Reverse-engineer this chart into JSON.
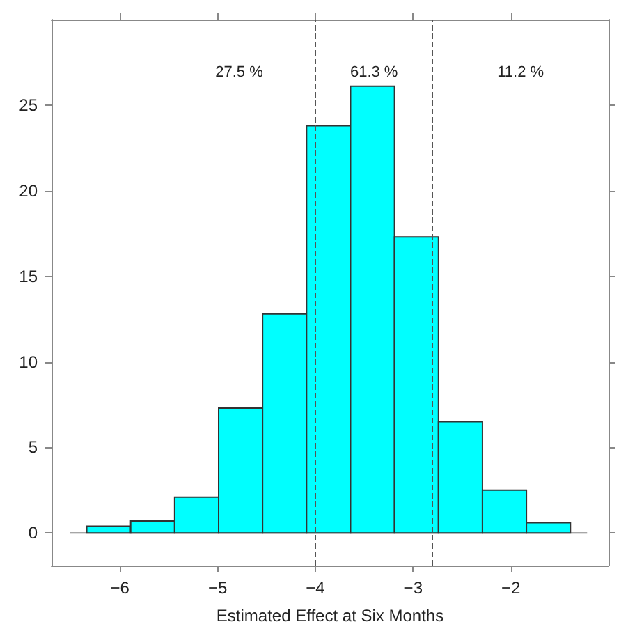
{
  "chart_data": {
    "type": "histogram",
    "xlabel": "Estimated Effect at Six Months",
    "bins": [
      -6.34,
      -5.89,
      -5.44,
      -4.99,
      -4.54,
      -4.09,
      -3.64,
      -3.19,
      -2.74,
      -2.29,
      -1.84,
      -1.39
    ],
    "values": [
      0.4,
      0.7,
      2.1,
      7.3,
      12.8,
      23.8,
      26.1,
      17.3,
      6.5,
      2.5,
      0.6
    ],
    "color": "#00ffff",
    "xlim": [
      -6.7,
      -1.0
    ],
    "ylim": [
      -1.9,
      30
    ],
    "xticks": [
      {
        "value": -6,
        "label": "−6"
      },
      {
        "value": -5,
        "label": "−5"
      },
      {
        "value": -4,
        "label": "−4"
      },
      {
        "value": -3,
        "label": "−3"
      },
      {
        "value": -2,
        "label": "−2"
      }
    ],
    "yticks": [
      0,
      5,
      10,
      15,
      20,
      25
    ],
    "ref_lines": [
      {
        "axis": "x",
        "value": -4,
        "line_style": "dashed",
        "color": "#555555"
      },
      {
        "axis": "x",
        "value": -2.8,
        "line_style": "dashed",
        "color": "#555555"
      }
    ],
    "annotations": [
      "27.5 %",
      "61.3 %",
      "11.2 %"
    ],
    "grid": false
  }
}
